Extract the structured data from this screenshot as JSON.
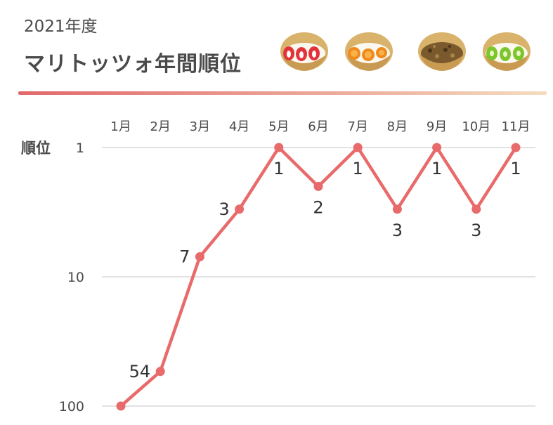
{
  "header": {
    "year": "2021年度",
    "title": "マリトッツォ年間順位"
  },
  "icons": [
    "strawberry-maritozzo-icon",
    "orange-maritozzo-icon",
    "nut-maritozzo-icon",
    "kiwi-maritozzo-icon"
  ],
  "colors": {
    "line": "#e86a6a",
    "grid": "#d8d8d8",
    "text": "#4a4a4a"
  },
  "chart_data": {
    "type": "line",
    "title": "",
    "ylabel": "順位",
    "xlabel": "",
    "y_scale": "log",
    "y_inverted": true,
    "ylim": [
      1,
      100
    ],
    "ytick_labels": [
      "1",
      "10",
      "100"
    ],
    "yticks": [
      1,
      10,
      100
    ],
    "categories": [
      "1月",
      "2月",
      "3月",
      "4月",
      "5月",
      "6月",
      "7月",
      "8月",
      "9月",
      "10月",
      "11月"
    ],
    "series": [
      {
        "values": [
          100,
          54,
          7,
          3,
          1,
          2,
          1,
          3,
          1,
          3,
          1
        ],
        "labels": [
          "",
          "54",
          "7",
          "3",
          "1",
          "2",
          "1",
          "3",
          "1",
          "3",
          "1"
        ]
      }
    ],
    "grid": true,
    "legend": "none"
  }
}
